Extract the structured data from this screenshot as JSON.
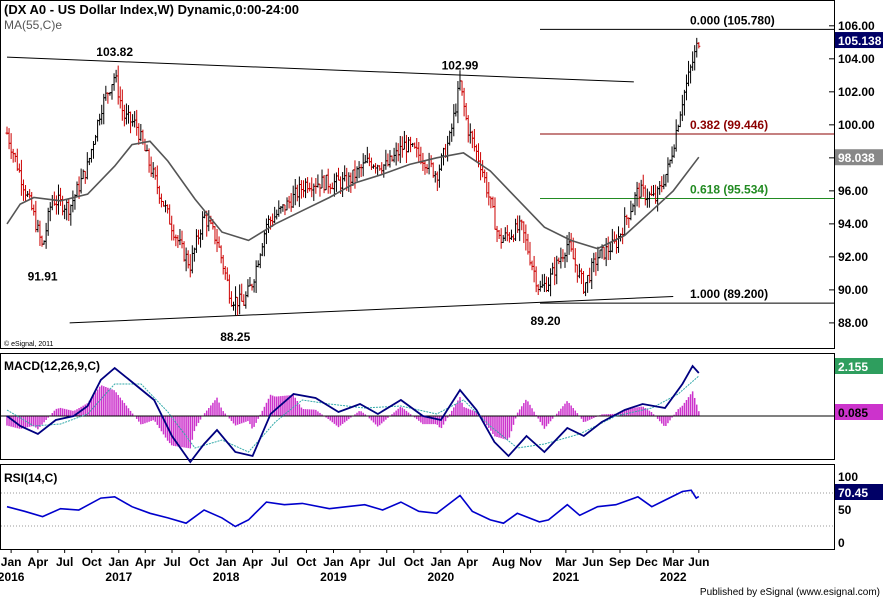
{
  "header": {
    "title": "(DX A0 - US Dollar Index,W) Dynamic,0:00-24:00",
    "ma_label": "MA(55,C)e",
    "copyright": "© eSignal, 2011",
    "footer": "Published by eSignal (www.esignal.com)"
  },
  "colors": {
    "up_bar": "#000000",
    "down_bar": "#cc0000",
    "ma_line": "#555555",
    "macd_line": "#000080",
    "signal_line": "#33aaaa",
    "histogram": "#cc33cc",
    "rsi_line": "#0000cc",
    "fib_000": "#000000",
    "fib_382": "#8b0000",
    "fib_618": "#228b22",
    "fib_100": "#000000",
    "price_badge": "#000066",
    "ma_badge": "#888888",
    "macd_badge": "#2e9e5e",
    "signal_badge": "#cc33cc",
    "rsi_badge": "#000066"
  },
  "chart_data": [
    {
      "type": "candlestick",
      "name": "price",
      "y_axis": {
        "ticks": [
          "106.00",
          "104.00",
          "102.00",
          "100.00",
          "98.00",
          "96.00",
          "94.00",
          "92.00",
          "90.00",
          "88.00"
        ],
        "ylim": [
          86.6,
          107.2
        ]
      },
      "x_axis": {
        "months": [
          "Jan",
          "Apr",
          "Jul",
          "Oct",
          "Jan",
          "Apr",
          "Jul",
          "Oct",
          "Jan",
          "Apr",
          "Jul",
          "Oct",
          "Jan",
          "Apr",
          "Jul",
          "Oct",
          "Jan",
          "Apr",
          "Aug",
          "Nov",
          "Mar",
          "Jun",
          "Sep",
          "Dec",
          "Mar",
          "Jun"
        ],
        "years": [
          "2016",
          "2017",
          "2018",
          "2019",
          "2020",
          "2021",
          "2022"
        ]
      },
      "close_path": [
        [
          "2016-01-01",
          99.5
        ],
        [
          "2016-02-15",
          97.0
        ],
        [
          "2016-04-01",
          94.5
        ],
        [
          "2016-05-01",
          92.5
        ],
        [
          "2016-06-01",
          95.5
        ],
        [
          "2016-08-01",
          95.0
        ],
        [
          "2016-10-01",
          97.5
        ],
        [
          "2016-11-15",
          101.0
        ],
        [
          "2017-01-01",
          103.0
        ],
        [
          "2017-02-01",
          100.5
        ],
        [
          "2017-03-15",
          100.0
        ],
        [
          "2017-05-01",
          97.5
        ],
        [
          "2017-07-01",
          94.5
        ],
        [
          "2017-08-15",
          92.5
        ],
        [
          "2017-09-15",
          91.5
        ],
        [
          "2017-11-01",
          94.5
        ],
        [
          "2017-12-15",
          93.0
        ],
        [
          "2018-02-01",
          89.5
        ],
        [
          "2018-03-15",
          89.2
        ],
        [
          "2018-04-15",
          90.5
        ],
        [
          "2018-06-01",
          94.0
        ],
        [
          "2018-08-01",
          95.0
        ],
        [
          "2018-10-15",
          96.5
        ],
        [
          "2019-01-01",
          96.5
        ],
        [
          "2019-03-01",
          96.5
        ],
        [
          "2019-05-15",
          97.8
        ],
        [
          "2019-07-15",
          97.5
        ],
        [
          "2019-09-15",
          98.8
        ],
        [
          "2019-11-15",
          98.0
        ],
        [
          "2020-01-01",
          97.0
        ],
        [
          "2020-02-15",
          99.2
        ],
        [
          "2020-03-20",
          102.5
        ],
        [
          "2020-04-15",
          99.8
        ],
        [
          "2020-06-01",
          97.5
        ],
        [
          "2020-08-01",
          93.0
        ],
        [
          "2020-10-15",
          93.8
        ],
        [
          "2020-12-15",
          90.0
        ],
        [
          "2021-01-15",
          90.5
        ],
        [
          "2021-03-20",
          92.8
        ],
        [
          "2021-05-15",
          90.2
        ],
        [
          "2021-07-01",
          92.0
        ],
        [
          "2021-09-01",
          92.8
        ],
        [
          "2021-11-15",
          96.0
        ],
        [
          "2022-01-15",
          95.5
        ],
        [
          "2022-03-01",
          97.5
        ],
        [
          "2022-04-15",
          101.5
        ],
        [
          "2022-05-15",
          103.5
        ],
        [
          "2022-06-10",
          105.14
        ]
      ],
      "ma_path": [
        [
          "2016-01-01",
          94.0
        ],
        [
          "2016-02-15",
          95.2
        ],
        [
          "2016-04-01",
          95.6
        ],
        [
          "2016-07-01",
          95.4
        ],
        [
          "2016-10-01",
          95.8
        ],
        [
          "2017-01-01",
          97.5
        ],
        [
          "2017-03-01",
          98.8
        ],
        [
          "2017-05-01",
          99.0
        ],
        [
          "2017-07-01",
          97.8
        ],
        [
          "2017-10-01",
          95.5
        ],
        [
          "2018-01-01",
          93.5
        ],
        [
          "2018-04-01",
          93.0
        ],
        [
          "2018-07-01",
          94.0
        ],
        [
          "2018-10-01",
          94.8
        ],
        [
          "2019-01-01",
          95.6
        ],
        [
          "2019-04-01",
          96.5
        ],
        [
          "2019-07-01",
          97.0
        ],
        [
          "2019-10-01",
          97.6
        ],
        [
          "2020-01-01",
          98.0
        ],
        [
          "2020-04-01",
          98.3
        ],
        [
          "2020-07-01",
          97.2
        ],
        [
          "2020-10-01",
          95.5
        ],
        [
          "2021-01-01",
          93.8
        ],
        [
          "2021-04-01",
          93.0
        ],
        [
          "2021-07-01",
          92.5
        ],
        [
          "2021-10-01",
          93.3
        ],
        [
          "2022-01-01",
          94.8
        ],
        [
          "2022-03-15",
          96.0
        ],
        [
          "2022-06-10",
          98.04
        ]
      ],
      "last_price": "105.138",
      "ma_value": "98.038",
      "annotations": [
        {
          "text": "103.82",
          "date": "2017-01-01",
          "value": 103.82
        },
        {
          "text": "91.91",
          "date": "2016-05-01",
          "value": 91.91
        },
        {
          "text": "88.25",
          "date": "2018-02-15",
          "value": 88.25
        },
        {
          "text": "102.99",
          "date": "2020-03-20",
          "value": 102.99
        },
        {
          "text": "89.20",
          "date": "2021-01-05",
          "value": 89.2
        }
      ],
      "trendlines": [
        {
          "from": [
            "2016-01-01",
            104.1
          ],
          "to": [
            "2021-11-01",
            102.6
          ]
        },
        {
          "from": [
            "2016-08-01",
            88.0
          ],
          "to": [
            "2022-03-15",
            89.6
          ]
        }
      ],
      "fibonacci": [
        {
          "label": "0.000 (105.780)",
          "value": 105.78
        },
        {
          "label": "0.382 (99.446)",
          "value": 99.446
        },
        {
          "label": "0.618 (95.534)",
          "value": 95.534
        },
        {
          "label": "1.000 (89.200)",
          "value": 89.2
        }
      ]
    },
    {
      "type": "line",
      "name": "MACD(12,26,9,C)",
      "ticks": [],
      "macd_value": "2.155",
      "signal_value": "0.085",
      "macd_path": [
        [
          "2016-01-01",
          0.0
        ],
        [
          "2016-02-15",
          -0.5
        ],
        [
          "2016-04-15",
          -0.9
        ],
        [
          "2016-06-15",
          -0.2
        ],
        [
          "2016-08-15",
          0.0
        ],
        [
          "2016-10-01",
          0.5
        ],
        [
          "2016-11-15",
          1.8
        ],
        [
          "2017-01-01",
          2.4
        ],
        [
          "2017-03-01",
          1.7
        ],
        [
          "2017-05-15",
          0.8
        ],
        [
          "2017-07-15",
          -1.0
        ],
        [
          "2017-09-15",
          -2.3
        ],
        [
          "2017-11-01",
          -1.4
        ],
        [
          "2017-12-15",
          -0.7
        ],
        [
          "2018-02-15",
          -1.8
        ],
        [
          "2018-04-15",
          -2.0
        ],
        [
          "2018-06-15",
          0.1
        ],
        [
          "2018-09-01",
          1.1
        ],
        [
          "2018-11-15",
          0.9
        ],
        [
          "2019-02-01",
          0.2
        ],
        [
          "2019-04-15",
          0.6
        ],
        [
          "2019-06-15",
          0.1
        ],
        [
          "2019-09-01",
          0.8
        ],
        [
          "2019-11-15",
          0.0
        ],
        [
          "2020-01-15",
          -0.2
        ],
        [
          "2020-03-20",
          1.3
        ],
        [
          "2020-05-15",
          0.3
        ],
        [
          "2020-07-15",
          -1.3
        ],
        [
          "2020-09-01",
          -2.0
        ],
        [
          "2020-11-01",
          -1.0
        ],
        [
          "2021-01-01",
          -1.8
        ],
        [
          "2021-03-20",
          -0.6
        ],
        [
          "2021-05-15",
          -1.0
        ],
        [
          "2021-07-15",
          -0.3
        ],
        [
          "2021-10-01",
          0.3
        ],
        [
          "2021-12-01",
          0.6
        ],
        [
          "2022-02-15",
          0.4
        ],
        [
          "2022-04-15",
          1.6
        ],
        [
          "2022-05-20",
          2.5
        ],
        [
          "2022-06-10",
          2.15
        ]
      ],
      "signal_path": [
        [
          "2016-01-01",
          0.3
        ],
        [
          "2016-04-01",
          -0.5
        ],
        [
          "2016-07-01",
          -0.4
        ],
        [
          "2016-10-01",
          0.1
        ],
        [
          "2017-01-01",
          1.6
        ],
        [
          "2017-04-01",
          1.6
        ],
        [
          "2017-07-01",
          0.2
        ],
        [
          "2017-10-01",
          -1.6
        ],
        [
          "2018-01-01",
          -1.2
        ],
        [
          "2018-04-01",
          -1.8
        ],
        [
          "2018-07-01",
          -0.3
        ],
        [
          "2018-10-01",
          0.8
        ],
        [
          "2019-01-01",
          0.6
        ],
        [
          "2019-05-01",
          0.4
        ],
        [
          "2019-09-01",
          0.5
        ],
        [
          "2020-01-01",
          0.1
        ],
        [
          "2020-04-01",
          0.8
        ],
        [
          "2020-07-01",
          -0.5
        ],
        [
          "2020-10-01",
          -1.6
        ],
        [
          "2021-01-01",
          -1.4
        ],
        [
          "2021-05-01",
          -0.9
        ],
        [
          "2021-09-01",
          0.0
        ],
        [
          "2022-01-01",
          0.4
        ],
        [
          "2022-04-01",
          1.1
        ],
        [
          "2022-06-10",
          2.0
        ]
      ]
    },
    {
      "type": "line",
      "name": "RSI(14,C)",
      "ticks": [
        "100",
        "70.45",
        "50",
        "0"
      ],
      "ylim": [
        0,
        100
      ],
      "rsi_value": "70.45",
      "rsi_path": [
        [
          "2016-01-01",
          55
        ],
        [
          "2016-03-01",
          48
        ],
        [
          "2016-05-01",
          40
        ],
        [
          "2016-07-01",
          52
        ],
        [
          "2016-09-01",
          50
        ],
        [
          "2016-11-15",
          68
        ],
        [
          "2017-01-01",
          70
        ],
        [
          "2017-03-01",
          55
        ],
        [
          "2017-05-01",
          45
        ],
        [
          "2017-07-01",
          38
        ],
        [
          "2017-09-01",
          30
        ],
        [
          "2017-11-01",
          50
        ],
        [
          "2018-01-01",
          38
        ],
        [
          "2018-02-15",
          25
        ],
        [
          "2018-04-01",
          35
        ],
        [
          "2018-06-01",
          62
        ],
        [
          "2018-08-01",
          58
        ],
        [
          "2018-10-01",
          60
        ],
        [
          "2019-01-01",
          52
        ],
        [
          "2019-03-01",
          55
        ],
        [
          "2019-05-01",
          58
        ],
        [
          "2019-07-01",
          50
        ],
        [
          "2019-09-01",
          62
        ],
        [
          "2019-11-01",
          48
        ],
        [
          "2020-01-01",
          45
        ],
        [
          "2020-03-20",
          72
        ],
        [
          "2020-05-01",
          48
        ],
        [
          "2020-07-01",
          35
        ],
        [
          "2020-08-15",
          30
        ],
        [
          "2020-10-01",
          45
        ],
        [
          "2020-12-15",
          32
        ],
        [
          "2021-01-15",
          35
        ],
        [
          "2021-03-20",
          58
        ],
        [
          "2021-05-01",
          42
        ],
        [
          "2021-07-01",
          55
        ],
        [
          "2021-09-01",
          58
        ],
        [
          "2021-11-15",
          70
        ],
        [
          "2022-01-01",
          55
        ],
        [
          "2022-03-01",
          68
        ],
        [
          "2022-04-15",
          78
        ],
        [
          "2022-05-15",
          80
        ],
        [
          "2022-06-01",
          68
        ],
        [
          "2022-06-10",
          70.45
        ]
      ]
    }
  ]
}
